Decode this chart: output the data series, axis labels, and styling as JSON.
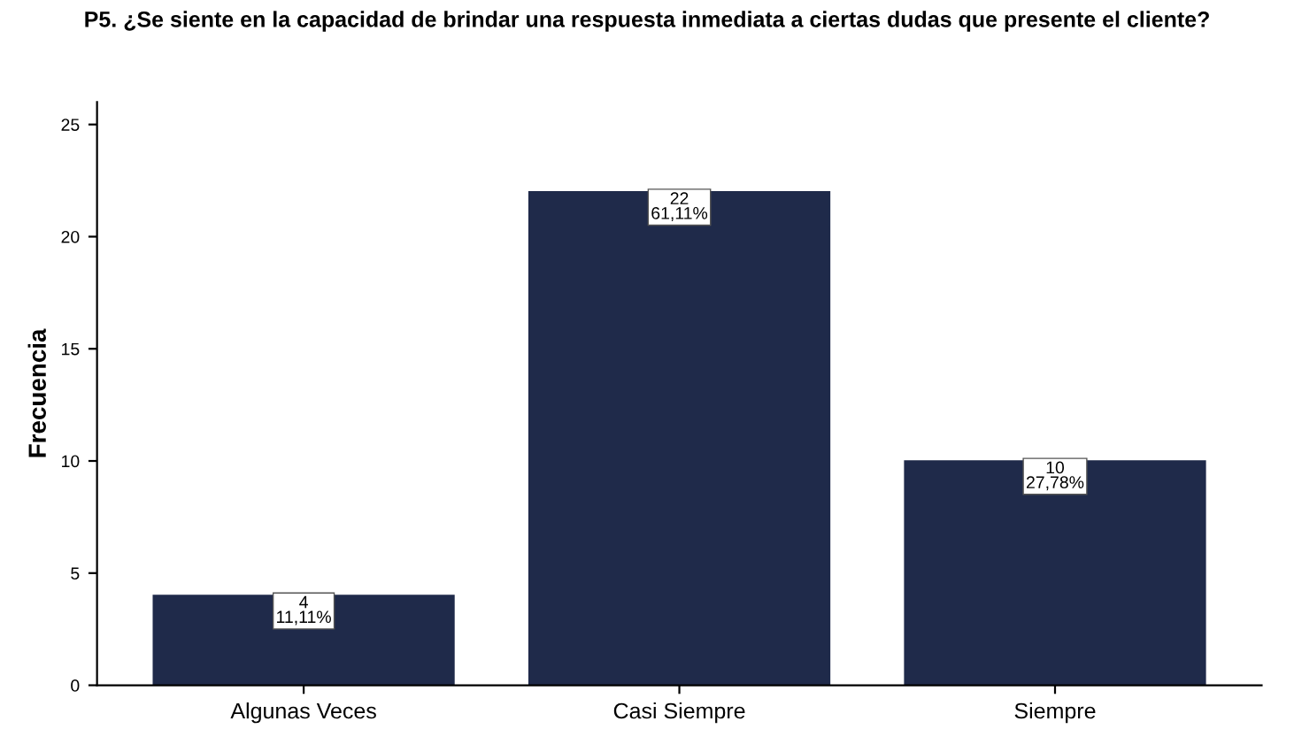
{
  "chart_data": {
    "type": "bar",
    "title": "P5. ¿Se siente en la capacidad de brindar una respuesta inmediata a ciertas dudas que presente el cliente?",
    "ylabel": "Frecuencia",
    "categories": [
      "Algunas Veces",
      "Casi Siempre",
      "Siempre"
    ],
    "values": [
      4,
      22,
      10
    ],
    "value_labels": [
      "4\n11,11%",
      "22\n61,11%",
      "10\n27,78%"
    ],
    "color": "#1f2a4a",
    "ylim": [
      0,
      26
    ],
    "yticks": [
      0,
      5,
      10,
      15,
      20,
      25
    ],
    "grid": false
  }
}
